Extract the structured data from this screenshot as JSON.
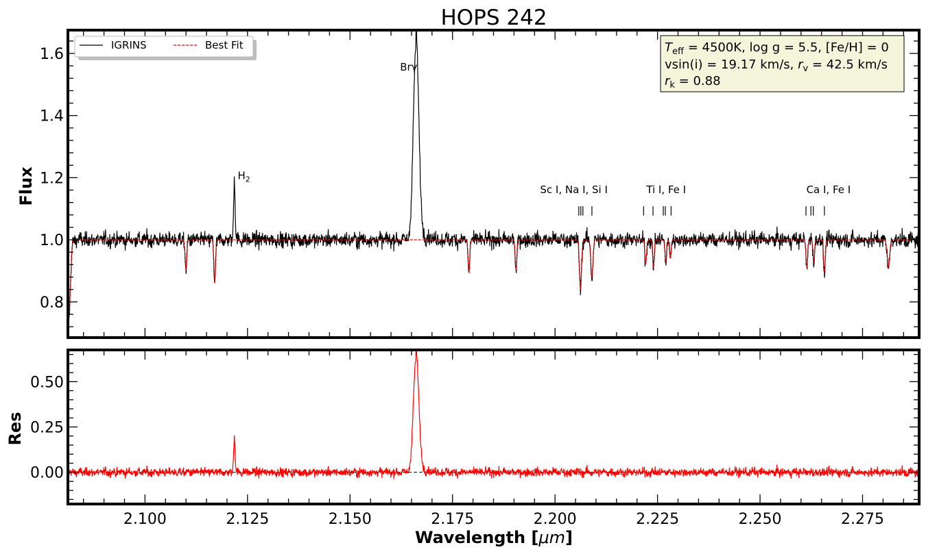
{
  "chart_data": {
    "type": "line",
    "title": "HOPS 242",
    "xlabel": "Wavelength [μm]",
    "xlabel_text": "Wavelength [",
    "xlabel_unit": "μm",
    "xlabel_close": "]",
    "xlim": [
      2.0812,
      2.2888
    ],
    "x_ticks": [
      "2.100",
      "2.125",
      "2.150",
      "2.175",
      "2.200",
      "2.225",
      "2.250",
      "2.275"
    ],
    "x_tick_values": [
      2.1,
      2.125,
      2.15,
      2.175,
      2.2,
      2.225,
      2.25,
      2.275
    ],
    "panels": [
      {
        "ylabel": "Flux",
        "ylim": [
          0.685,
          1.675
        ],
        "y_ticks": [
          "0.8",
          "1.0",
          "1.2",
          "1.4",
          "1.6"
        ],
        "y_tick_values": [
          0.8,
          1.0,
          1.2,
          1.4,
          1.6
        ],
        "series": [
          {
            "name": "IGRINS",
            "color": "#000000",
            "style": "solid"
          },
          {
            "name": "Best Fit",
            "color": "#ff0000",
            "style": "dashed"
          }
        ]
      },
      {
        "ylabel": "Res",
        "ylim": [
          -0.175,
          0.675
        ],
        "y_ticks": [
          "0.00",
          "0.25",
          "0.50"
        ],
        "y_tick_values": [
          0.0,
          0.25,
          0.5
        ],
        "zero_line": 0.0,
        "series": [
          {
            "name": "Residual",
            "color": "#ff0000",
            "style": "solid"
          }
        ]
      }
    ],
    "continuum": 1.0,
    "emission_lines": [
      {
        "center": 2.1218,
        "amp": 0.2,
        "sigma": 0.00018
      },
      {
        "center": 2.1661,
        "amp": 0.63,
        "sigma": 0.00065
      }
    ],
    "absorption_lines": [
      {
        "center": 2.0814,
        "depth": 0.26,
        "sigma": 0.0004
      },
      {
        "center": 2.11,
        "depth": 0.1,
        "sigma": 0.0002
      },
      {
        "center": 2.117,
        "depth": 0.14,
        "sigma": 0.0002
      },
      {
        "center": 2.179,
        "depth": 0.11,
        "sigma": 0.0002
      },
      {
        "center": 2.1905,
        "depth": 0.1,
        "sigma": 0.0002
      },
      {
        "center": 2.2062,
        "depth": 0.16,
        "sigma": 0.00025
      },
      {
        "center": 2.209,
        "depth": 0.12,
        "sigma": 0.00025
      },
      {
        "center": 2.2221,
        "depth": 0.08,
        "sigma": 0.0002
      },
      {
        "center": 2.224,
        "depth": 0.09,
        "sigma": 0.0002
      },
      {
        "center": 2.227,
        "depth": 0.07,
        "sigma": 0.0002
      },
      {
        "center": 2.2281,
        "depth": 0.06,
        "sigma": 0.0002
      },
      {
        "center": 2.2614,
        "depth": 0.09,
        "sigma": 0.0002
      },
      {
        "center": 2.2631,
        "depth": 0.07,
        "sigma": 0.0002
      },
      {
        "center": 2.2657,
        "depth": 0.11,
        "sigma": 0.0002
      },
      {
        "center": 2.2813,
        "depth": 0.09,
        "sigma": 0.0003
      }
    ],
    "line_markers": [
      {
        "label": "Sc I, Na I, Si I",
        "label_x": 2.2046,
        "ticks": [
          2.2058,
          2.2063,
          2.2068,
          2.209
        ]
      },
      {
        "label": "Ti I, Fe I",
        "label_x": 2.2271,
        "ticks": [
          2.2216,
          2.2239,
          2.2264,
          2.2269,
          2.2283
        ]
      },
      {
        "label": "Ca I, Fe I",
        "label_x": 2.2667,
        "ticks": [
          2.2612,
          2.2624,
          2.263,
          2.2657
        ]
      }
    ],
    "line_labels": [
      {
        "text": "H",
        "sub": "2",
        "x": 2.1226,
        "y": 1.195
      },
      {
        "text": "Brγ",
        "x": 2.1622,
        "y": 1.545
      }
    ],
    "legend": {
      "position": "top-left",
      "entries": [
        "IGRINS",
        "Best Fit"
      ]
    },
    "info_box": {
      "position": "top-right",
      "line1": {
        "teff_sym": "T",
        "teff_sub": "eff",
        "teff_rest": " = 4500K, log g = 5.5, [Fe/H] = 0"
      },
      "line2": {
        "a": "vsin(i) = 19.17 km/s, ",
        "rv_sym": "r",
        "rv_sub": "v",
        "b": " = 42.5 km/s"
      },
      "line3": {
        "rk_sym": "r",
        "rk_sub": "k",
        "c": " = 0.88"
      }
    }
  }
}
